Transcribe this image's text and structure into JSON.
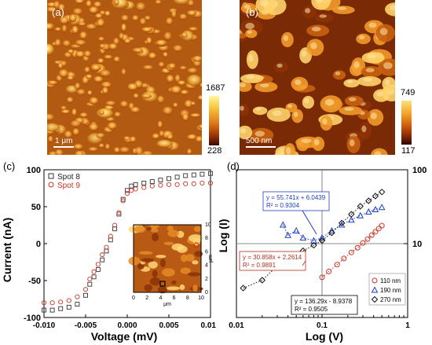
{
  "panels": {
    "a": {
      "label": "(a)",
      "scale_label": "1 μm",
      "colorbar": {
        "max": "1687",
        "min": "228"
      }
    },
    "b": {
      "label": "(b)",
      "scale_label": "500 nm",
      "colorbar": {
        "max": "749",
        "min": "117"
      }
    },
    "c": {
      "label": "(c)"
    },
    "d": {
      "label": "(d)"
    }
  },
  "chart_data": [
    {
      "type": "scatter",
      "panel": "(c)",
      "xlabel": "Voltage (mV)",
      "ylabel": "Current (nA)",
      "xlim": [
        -0.01,
        0.01
      ],
      "ylim": [
        -100,
        100
      ],
      "xticks": [
        "-0.010",
        "-0.005",
        "0.000",
        "0.005",
        "0.010"
      ],
      "yticks": [
        "100",
        "50",
        "0",
        "-50",
        "-100"
      ],
      "legend_position": "top-left",
      "series": [
        {
          "name": "Spot 8",
          "marker": "square",
          "color": "#333333",
          "x": [
            -0.01,
            -0.009,
            -0.008,
            -0.007,
            -0.006,
            -0.005,
            -0.0045,
            -0.004,
            -0.0035,
            -0.003,
            -0.0025,
            -0.002,
            -0.0015,
            -0.001,
            -0.0005,
            0.0,
            0.0005,
            0.001,
            0.002,
            0.003,
            0.004,
            0.005,
            0.006,
            0.007,
            0.008,
            0.009,
            0.01
          ],
          "y": [
            -90,
            -90,
            -88,
            -86,
            -82,
            -70,
            -55,
            -45,
            -35,
            -22,
            -10,
            5,
            20,
            40,
            60,
            72,
            78,
            80,
            82,
            84,
            86,
            88,
            90,
            92,
            93,
            94,
            95
          ]
        },
        {
          "name": "Spot 9",
          "marker": "circle",
          "color": "#cc3322",
          "x": [
            -0.01,
            -0.009,
            -0.008,
            -0.007,
            -0.006,
            -0.005,
            -0.0045,
            -0.004,
            -0.0035,
            -0.003,
            -0.0025,
            -0.002,
            -0.0015,
            -0.001,
            -0.0005,
            0.0,
            0.0005,
            0.001,
            0.002,
            0.003,
            0.004,
            0.005,
            0.006,
            0.007,
            0.008,
            0.009,
            0.01
          ],
          "y": [
            -80,
            -80,
            -79,
            -77,
            -72,
            -62,
            -48,
            -38,
            -28,
            -15,
            -5,
            10,
            25,
            42,
            58,
            68,
            72,
            74,
            76,
            78,
            79,
            80,
            80,
            81,
            81,
            82,
            82
          ]
        }
      ],
      "inset": {
        "xlabel": "μm",
        "ylabel": "μm",
        "xticks": [
          "0",
          "2",
          "4",
          "6",
          "8",
          "10"
        ],
        "yticks": [
          "0",
          "2",
          "4",
          "6",
          "8",
          "10"
        ]
      }
    },
    {
      "type": "scatter",
      "panel": "(d)",
      "xlabel": "Log (V)",
      "ylabel": "Log (I)",
      "xscale": "log",
      "yscale": "log",
      "xlim": [
        0.01,
        1
      ],
      "ylim": [
        1,
        100
      ],
      "xticks": [
        "0.01",
        "0.1",
        "1"
      ],
      "yticks": [
        "100",
        "10"
      ],
      "legend_position": "bottom-right",
      "series": [
        {
          "name": "110 nm",
          "marker": "circle",
          "color": "#cc3322",
          "x": [
            0.1,
            0.12,
            0.15,
            0.18,
            0.22,
            0.26,
            0.3,
            0.34,
            0.38,
            0.42,
            0.46,
            0.5
          ],
          "y": [
            3.5,
            4.2,
            5.2,
            6.3,
            7.6,
            8.8,
            10.2,
            11.5,
            13,
            14.5,
            16,
            17.5
          ]
        },
        {
          "name": "190 nm",
          "marker": "triangle",
          "color": "#1f3fbf",
          "x": [
            0.035,
            0.04,
            0.05,
            0.06,
            0.08,
            0.1,
            0.13,
            0.17,
            0.22,
            0.28,
            0.35,
            0.42,
            0.5
          ],
          "y": [
            18,
            13,
            15,
            12,
            11,
            12,
            15,
            18,
            21,
            24,
            27,
            29,
            31
          ]
        },
        {
          "name": "270 nm",
          "marker": "diamond",
          "color": "#111111",
          "x": [
            0.012,
            0.02,
            0.03,
            0.04,
            0.06,
            0.08,
            0.1,
            0.13,
            0.17,
            0.22,
            0.28,
            0.35,
            0.42,
            0.5
          ],
          "y": [
            2.5,
            3.2,
            5,
            6,
            8,
            9.5,
            11,
            14,
            19,
            25,
            32,
            38,
            44,
            50
          ]
        }
      ],
      "fit_annotations": [
        {
          "equation": "y = 55.741x + 6.0439",
          "r2": "R² = 0.9304",
          "color": "#1f3fbf"
        },
        {
          "equation": "y = 30.858x + 2.2614",
          "r2": "R² = 0.9891",
          "color": "#b03020"
        },
        {
          "equation": "y = 136.29x - 8.9378",
          "r2": "R² = 0.9505",
          "color": "#000000"
        }
      ]
    }
  ]
}
